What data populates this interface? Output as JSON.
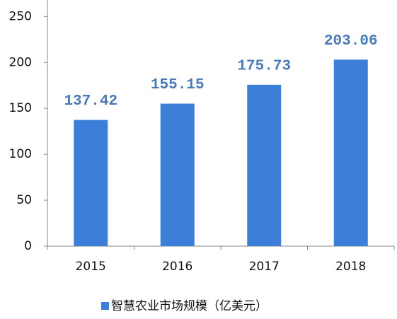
{
  "chart_data": {
    "type": "bar",
    "categories": [
      "2015",
      "2016",
      "2017",
      "2018"
    ],
    "series": [
      {
        "name": "智慧农业市场规模（亿美元）",
        "color": "#3b7fd9",
        "values": [
          137.42,
          155.15,
          175.73,
          203.06
        ]
      }
    ],
    "ylim": [
      0,
      268
    ],
    "yticks": [
      0,
      50,
      100,
      150,
      200,
      250
    ],
    "legend": "bottom",
    "show_value_labels": true
  }
}
